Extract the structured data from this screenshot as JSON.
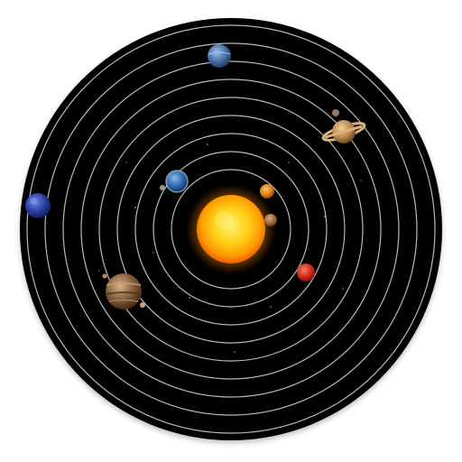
{
  "app_icon": {
    "subject": "solar-system",
    "colors": {
      "background": "#ffffff",
      "disc": "#050505",
      "orbit": "#d9d9d9",
      "sun_core": "#ffd21a",
      "sun_edge": "#ff7a00",
      "mercury": "#9a6a3a",
      "venus": "#e07a18",
      "earth": "#1e4f8c",
      "mars": "#d0261a",
      "jupiter": "#7a5535",
      "saturn": "#b7854b",
      "uranus": "#3f6aa0",
      "neptune": "#243b9a"
    }
  }
}
